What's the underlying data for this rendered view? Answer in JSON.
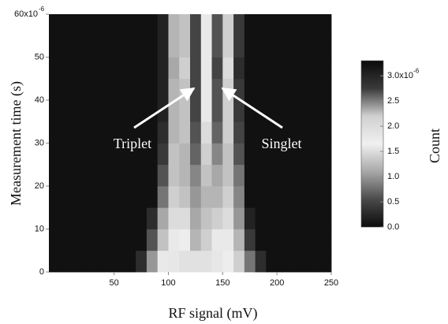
{
  "chart_data": {
    "type": "heatmap",
    "xlabel": "RF signal (mV)",
    "ylabel": "Measurement time (s)",
    "zlabel": "Count",
    "xlim": [
      -10,
      250
    ],
    "ylim": [
      0,
      60
    ],
    "zlim": [
      0,
      3.3
    ],
    "xticks": [
      50,
      100,
      150,
      200,
      250
    ],
    "yticks": [
      0,
      10,
      20,
      30,
      40,
      50,
      {
        "value": 60,
        "label": "60x10",
        "exponent": "-6"
      }
    ],
    "zticks": [
      {
        "value": 0,
        "label": "0.0"
      },
      {
        "value": 0.5,
        "label": "0.5"
      },
      {
        "value": 1,
        "label": "1.0"
      },
      {
        "value": 1.5,
        "label": "1.5"
      },
      {
        "value": 2,
        "label": "2.0"
      },
      {
        "value": 2.5,
        "label": "2.5"
      },
      {
        "value": 3,
        "label": "3.0x10",
        "exponent": "-6"
      }
    ],
    "colormap": [
      "#0b0b0b",
      "#4a4a4a",
      "#a8a8a8",
      "#f0f0f0",
      "#d0d0d0",
      "#3a3a3a",
      "#0b0b0b"
    ],
    "annotations": [
      "Triplet",
      "Singlet"
    ],
    "xbins": [
      -10,
      0,
      10,
      20,
      30,
      40,
      50,
      60,
      70,
      80,
      90,
      100,
      110,
      120,
      130,
      140,
      150,
      160,
      170,
      180,
      190,
      200,
      210,
      220,
      230,
      240,
      250
    ],
    "ybins": [
      0,
      5,
      10,
      15,
      20,
      25,
      30,
      35,
      40,
      45,
      50,
      55,
      60
    ],
    "values": [
      [
        0.05,
        0.05,
        0.05,
        0.05,
        0.05,
        0.05,
        0.05,
        0.05,
        0.3,
        1.0,
        1.6,
        1.8,
        1.9,
        1.9,
        1.9,
        1.8,
        1.7,
        1.4,
        0.8,
        0.3,
        0.05,
        0.05,
        0.05,
        0.05,
        0.05,
        0.05
      ],
      [
        0.05,
        0.05,
        0.05,
        0.05,
        0.05,
        0.05,
        0.05,
        0.05,
        0.05,
        0.6,
        1.3,
        1.6,
        1.7,
        1.2,
        1.4,
        1.6,
        1.6,
        1.2,
        0.4,
        0.05,
        0.05,
        0.05,
        0.05,
        0.05,
        0.05,
        0.05
      ],
      [
        0.05,
        0.05,
        0.05,
        0.05,
        0.05,
        0.05,
        0.05,
        0.05,
        0.05,
        0.3,
        1.1,
        1.5,
        1.5,
        1.1,
        1.3,
        1.4,
        1.5,
        1.0,
        0.2,
        0.05,
        0.05,
        0.05,
        0.05,
        0.05,
        0.05,
        0.05
      ],
      [
        0.05,
        0.05,
        0.05,
        0.05,
        0.05,
        0.05,
        0.05,
        0.05,
        0.05,
        0.05,
        0.8,
        1.4,
        1.3,
        1.0,
        1.2,
        1.2,
        1.4,
        0.9,
        0.05,
        0.05,
        0.05,
        0.05,
        0.05,
        0.05,
        0.05,
        0.05
      ],
      [
        0.05,
        0.05,
        0.05,
        0.05,
        0.05,
        0.05,
        0.05,
        0.05,
        0.05,
        0.05,
        0.6,
        1.3,
        1.2,
        0.9,
        1.3,
        1.1,
        1.3,
        0.8,
        0.05,
        0.05,
        0.05,
        0.05,
        0.05,
        0.05,
        0.05,
        0.05
      ],
      [
        0.05,
        0.05,
        0.05,
        0.05,
        0.05,
        0.05,
        0.05,
        0.05,
        0.05,
        0.05,
        0.4,
        1.3,
        1.2,
        0.7,
        1.4,
        0.9,
        1.3,
        0.6,
        0.05,
        0.05,
        0.05,
        0.05,
        0.05,
        0.05,
        0.05,
        0.05
      ],
      [
        0.05,
        0.05,
        0.05,
        0.05,
        0.05,
        0.05,
        0.05,
        0.05,
        0.05,
        0.05,
        0.3,
        1.2,
        1.3,
        0.6,
        1.5,
        0.7,
        1.4,
        0.5,
        0.05,
        0.05,
        0.05,
        0.05,
        0.05,
        0.05,
        0.05,
        0.05
      ],
      [
        0.05,
        0.05,
        0.05,
        0.05,
        0.05,
        0.05,
        0.05,
        0.05,
        0.05,
        0.05,
        0.2,
        1.2,
        1.3,
        0.5,
        1.6,
        0.6,
        1.4,
        0.4,
        0.05,
        0.05,
        0.05,
        0.05,
        0.05,
        0.05,
        0.05,
        0.05
      ],
      [
        0.05,
        0.05,
        0.05,
        0.05,
        0.05,
        0.05,
        0.05,
        0.05,
        0.05,
        0.05,
        0.2,
        1.2,
        1.3,
        0.5,
        1.6,
        0.6,
        1.4,
        0.4,
        0.05,
        0.05,
        0.05,
        0.05,
        0.05,
        0.05,
        0.05,
        0.05
      ],
      [
        0.05,
        0.05,
        0.05,
        0.05,
        0.05,
        0.05,
        0.05,
        0.05,
        0.05,
        0.05,
        0.2,
        1.1,
        1.4,
        0.5,
        1.6,
        0.5,
        1.5,
        0.3,
        0.05,
        0.05,
        0.05,
        0.05,
        0.05,
        0.05,
        0.05,
        0.05
      ],
      [
        0.05,
        0.05,
        0.05,
        0.05,
        0.05,
        0.05,
        0.05,
        0.05,
        0.05,
        0.05,
        0.2,
        1.2,
        1.3,
        0.5,
        1.6,
        0.6,
        1.4,
        0.4,
        0.05,
        0.05,
        0.05,
        0.05,
        0.05,
        0.05,
        0.05,
        0.05
      ],
      [
        0.05,
        0.05,
        0.05,
        0.05,
        0.05,
        0.05,
        0.05,
        0.05,
        0.05,
        0.05,
        0.2,
        1.2,
        1.3,
        0.5,
        1.6,
        0.6,
        1.4,
        0.4,
        0.05,
        0.05,
        0.05,
        0.05,
        0.05,
        0.05,
        0.05,
        0.05
      ]
    ]
  }
}
